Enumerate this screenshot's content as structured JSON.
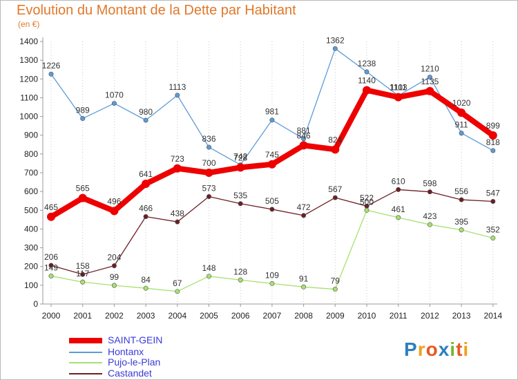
{
  "title": "Evolution du Montant de la Dette par Habitant",
  "subtitle": "(en €)",
  "logo": {
    "text": "Proxiti",
    "letters": [
      {
        "ch": "P",
        "color": "#2e7fc0"
      },
      {
        "ch": "r",
        "color": "#f0a020"
      },
      {
        "ch": "o",
        "color": "#e85820"
      },
      {
        "ch": "x",
        "color": "#2e7fc0"
      },
      {
        "ch": "i",
        "color": "#70b830"
      },
      {
        "ch": "t",
        "color": "#e85820"
      },
      {
        "ch": "i",
        "color": "#f0a020"
      }
    ]
  },
  "chart_data": {
    "type": "line",
    "title": "Evolution du Montant de la Dette par Habitant",
    "ylabel": "(en €)",
    "xlabel": "",
    "x": [
      "2000",
      "2001",
      "2002",
      "2003",
      "2004",
      "2005",
      "2006",
      "2007",
      "2008",
      "2009",
      "2010",
      "2011",
      "2012",
      "2013",
      "2014"
    ],
    "ylim": [
      0,
      1400
    ],
    "yticks": [
      0,
      100,
      200,
      300,
      400,
      500,
      600,
      700,
      800,
      900,
      1000,
      1100,
      1200,
      1300,
      1400
    ],
    "grid": "vertical-dotted",
    "legend_position": "bottom-left",
    "series": [
      {
        "name": "SAINT-GEIN",
        "color": "#ee0000",
        "values": [
          465,
          565,
          496,
          641,
          723,
          700,
          728,
          745,
          846,
          824,
          1140,
          1103,
          1135,
          1020,
          899
        ]
      },
      {
        "name": "Hontanx",
        "color": "#5d9bd5",
        "values": [
          1226,
          989,
          1070,
          980,
          1113,
          836,
          742,
          981,
          881,
          1362,
          1238,
          1111,
          1210,
          911,
          818
        ]
      },
      {
        "name": "Pujo-le-Plan",
        "color": "#a8e070",
        "values": [
          149,
          117,
          99,
          84,
          67,
          148,
          128,
          109,
          91,
          79,
          500,
          461,
          423,
          395,
          352
        ]
      },
      {
        "name": "Castandet",
        "color": "#6b1f24",
        "values": [
          206,
          158,
          204,
          466,
          438,
          573,
          535,
          505,
          472,
          567,
          522,
          610,
          598,
          556,
          547
        ]
      }
    ]
  }
}
